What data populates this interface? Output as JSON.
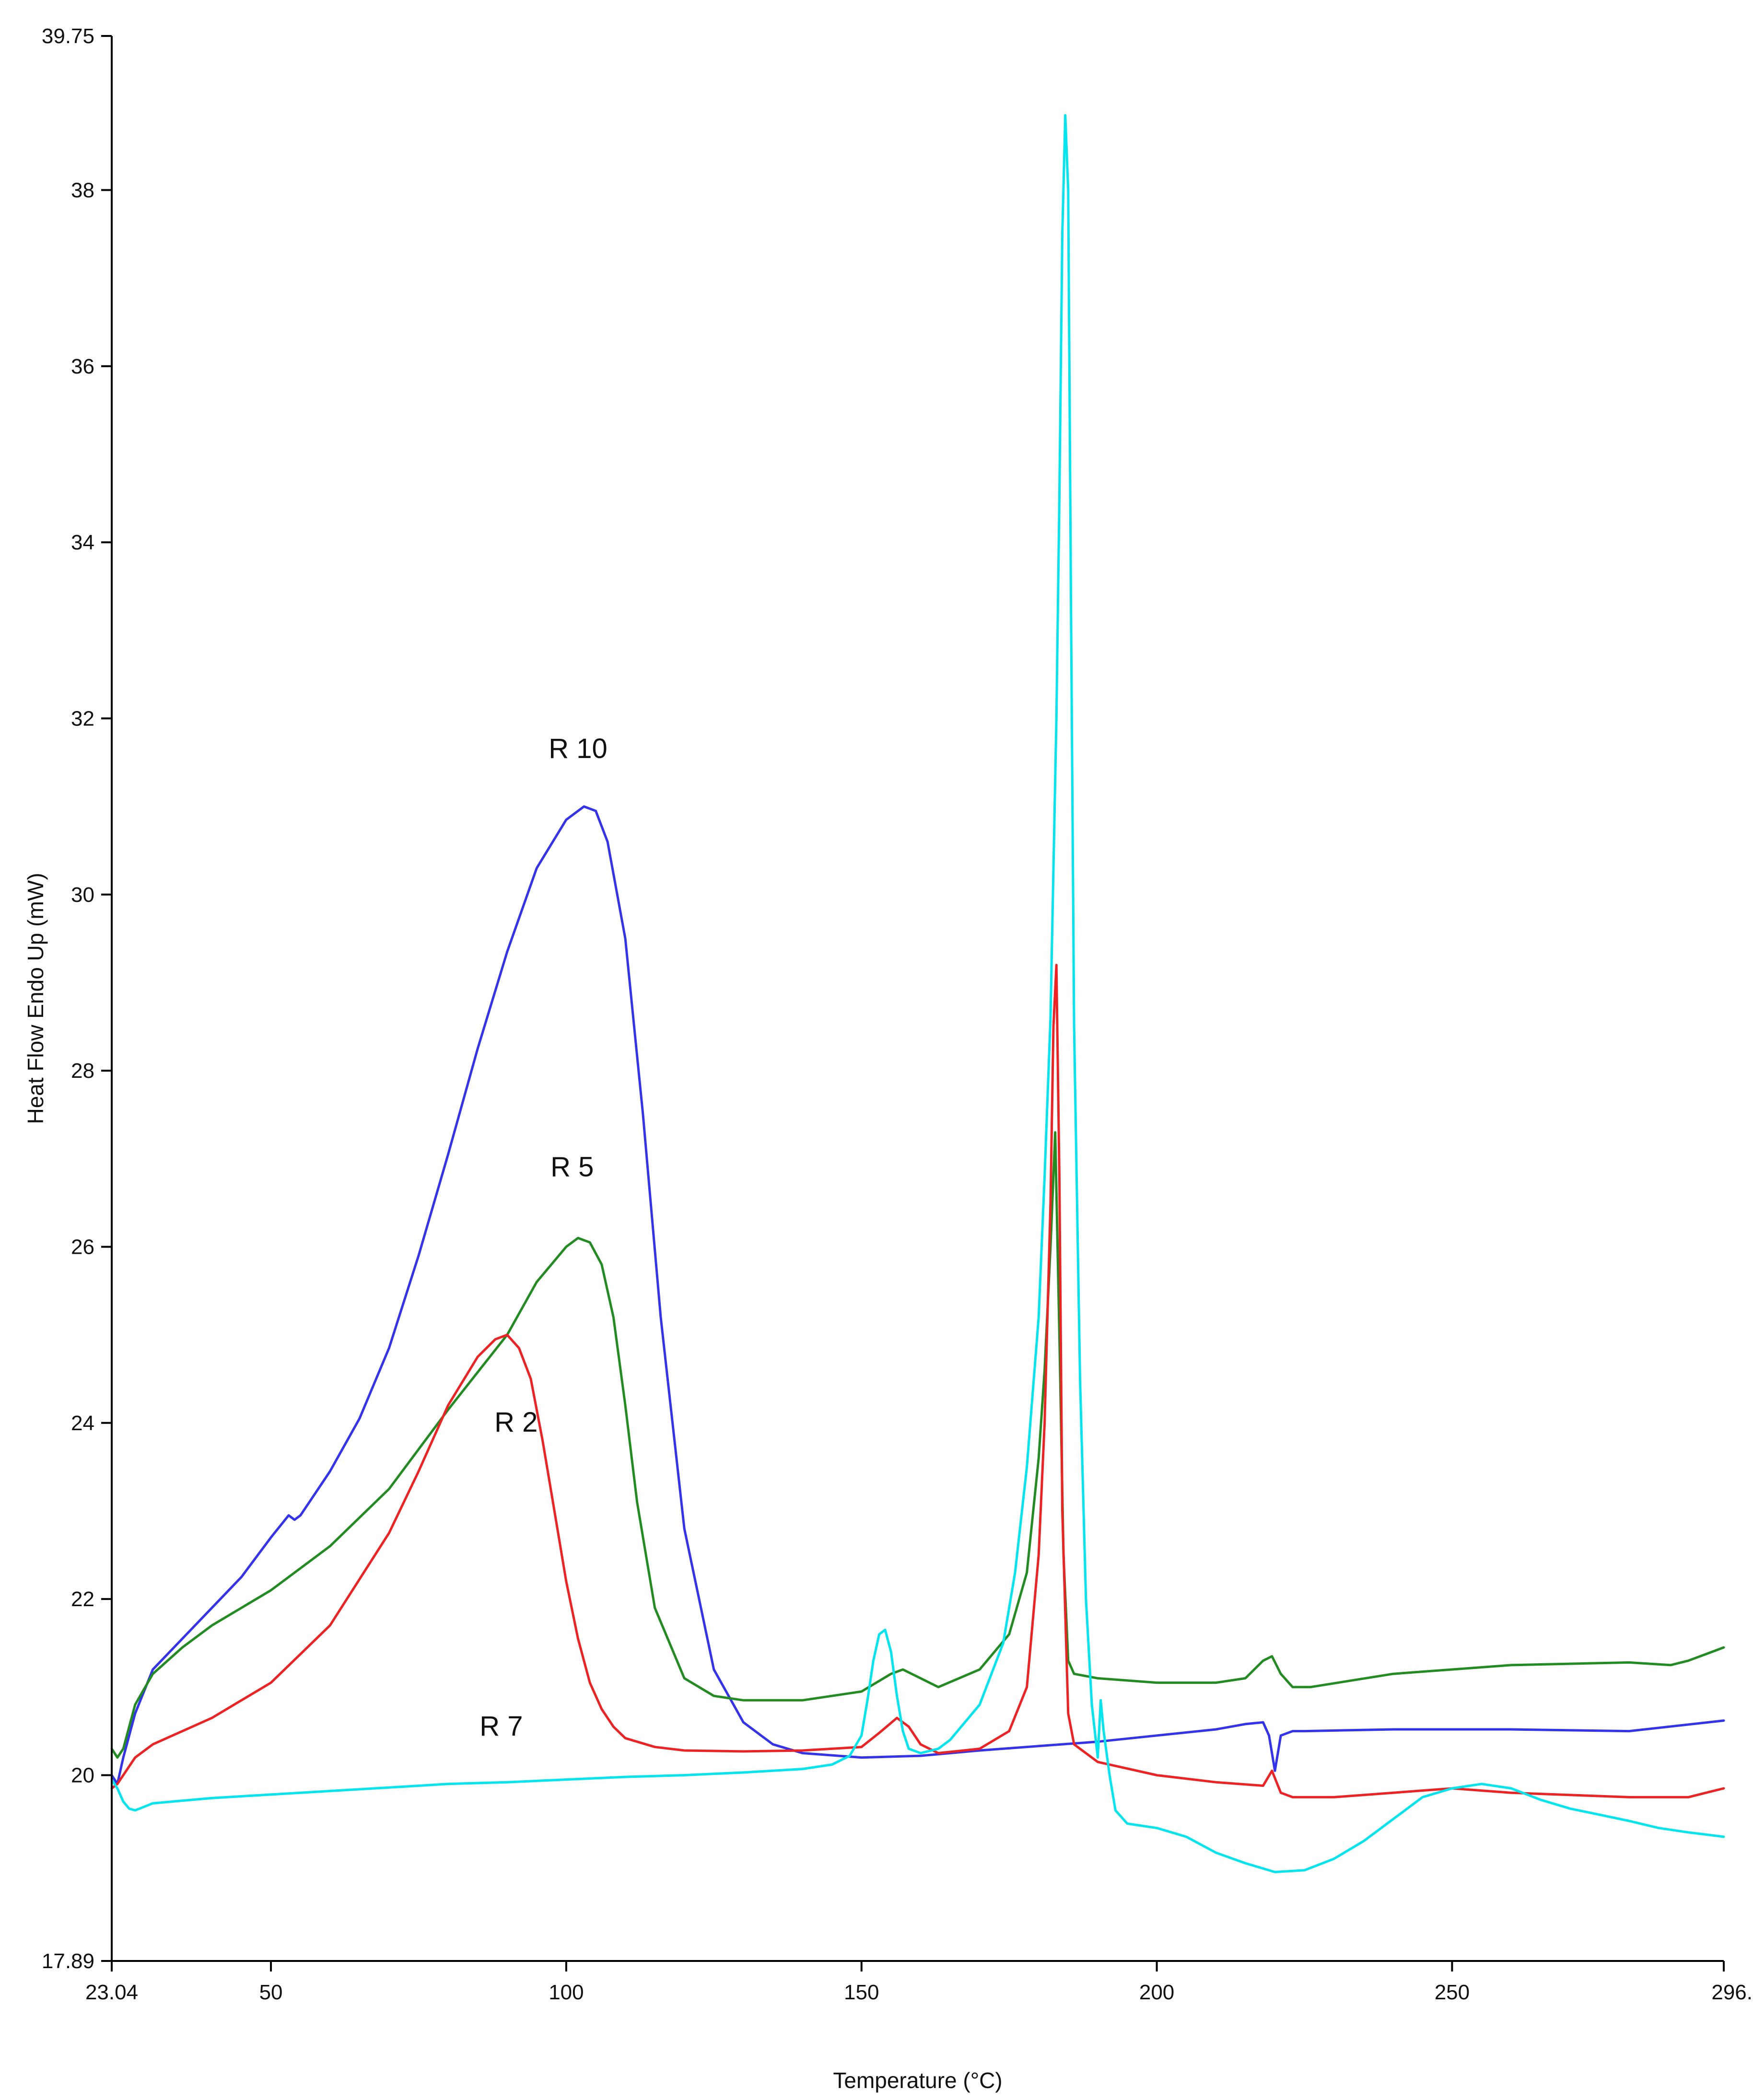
{
  "chart_data": {
    "type": "line",
    "title": "",
    "xlabel": "Temperature (°C)",
    "ylabel": "Heat Flow Endo Up (mW)",
    "xlim": [
      23.04,
      296
    ],
    "ylim": [
      17.89,
      39.75
    ],
    "grid": false,
    "legend": "none",
    "x_ticks": [
      {
        "value": 23.04,
        "label": "23.04"
      },
      {
        "value": 50,
        "label": "50"
      },
      {
        "value": 100,
        "label": "100"
      },
      {
        "value": 150,
        "label": "150"
      },
      {
        "value": 200,
        "label": "200"
      },
      {
        "value": 250,
        "label": "250"
      },
      {
        "value": 296,
        "label": "296."
      }
    ],
    "y_ticks": [
      {
        "value": 17.89,
        "label": "17.89"
      },
      {
        "value": 20,
        "label": "20"
      },
      {
        "value": 22,
        "label": "22"
      },
      {
        "value": 24,
        "label": "24"
      },
      {
        "value": 26,
        "label": "26"
      },
      {
        "value": 28,
        "label": "28"
      },
      {
        "value": 30,
        "label": "30"
      },
      {
        "value": 32,
        "label": "32"
      },
      {
        "value": 34,
        "label": "34"
      },
      {
        "value": 36,
        "label": "36"
      },
      {
        "value": 38,
        "label": "38"
      },
      {
        "value": 39.75,
        "label": "39.75"
      }
    ],
    "annotations": [
      {
        "text": "R 10",
        "x": 102,
        "y": 31.55
      },
      {
        "text": "R 5",
        "x": 101,
        "y": 26.8
      },
      {
        "text": "R 2",
        "x": 91.5,
        "y": 23.9
      },
      {
        "text": "R 7",
        "x": 89,
        "y": 20.45
      }
    ],
    "series": [
      {
        "color": "#3333ee",
        "x": [
          23.04,
          24,
          25,
          27,
          30,
          35,
          40,
          45,
          50,
          53,
          54,
          55,
          57,
          60,
          65,
          70,
          75,
          80,
          85,
          90,
          95,
          100,
          103,
          105,
          107,
          110,
          113,
          116,
          120,
          125,
          130,
          135,
          140,
          150,
          160,
          170,
          180,
          190,
          200,
          210,
          215,
          218,
          219,
          220,
          221,
          223,
          225,
          240,
          260,
          280,
          296
        ],
        "y": [
          20.0,
          19.9,
          20.2,
          20.7,
          21.2,
          21.55,
          21.9,
          22.25,
          22.7,
          22.95,
          22.9,
          22.95,
          23.15,
          23.45,
          24.05,
          24.85,
          25.9,
          27.05,
          28.25,
          29.35,
          30.3,
          30.85,
          31.0,
          30.95,
          30.6,
          29.5,
          27.5,
          25.2,
          22.8,
          21.2,
          20.6,
          20.35,
          20.25,
          20.2,
          20.22,
          20.28,
          20.33,
          20.38,
          20.45,
          20.52,
          20.58,
          20.6,
          20.45,
          20.05,
          20.45,
          20.5,
          20.5,
          20.52,
          20.52,
          20.5,
          20.62
        ]
      },
      {
        "color": "#228b22",
        "x": [
          23.04,
          24,
          25,
          27,
          30,
          35,
          40,
          50,
          60,
          70,
          80,
          90,
          95,
          100,
          102,
          104,
          106,
          108,
          110,
          112,
          115,
          120,
          125,
          130,
          140,
          150,
          155,
          157,
          160,
          163,
          170,
          175,
          178,
          180,
          181,
          182,
          182.8,
          183.5,
          184.2,
          185,
          186,
          190,
          200,
          210,
          215,
          218,
          219.5,
          221,
          223,
          226,
          240,
          260,
          280,
          287,
          290,
          296
        ],
        "y": [
          20.3,
          20.2,
          20.3,
          20.8,
          21.15,
          21.45,
          21.7,
          22.1,
          22.6,
          23.25,
          24.15,
          25.0,
          25.6,
          26.0,
          26.1,
          26.05,
          25.8,
          25.2,
          24.2,
          23.1,
          21.9,
          21.1,
          20.9,
          20.85,
          20.85,
          20.95,
          21.15,
          21.2,
          21.1,
          21.0,
          21.2,
          21.6,
          22.3,
          23.6,
          24.6,
          26.0,
          27.3,
          25.0,
          22.5,
          21.3,
          21.15,
          21.1,
          21.05,
          21.05,
          21.1,
          21.3,
          21.35,
          21.15,
          21.0,
          21.0,
          21.15,
          21.25,
          21.28,
          21.25,
          21.3,
          21.45
        ]
      },
      {
        "color": "#ee2222",
        "x": [
          23.04,
          24,
          25,
          27,
          30,
          40,
          50,
          60,
          70,
          75,
          80,
          85,
          88,
          90,
          92,
          94,
          96,
          98,
          100,
          102,
          104,
          106,
          108,
          110,
          115,
          120,
          130,
          140,
          150,
          153,
          156,
          158,
          160,
          163,
          170,
          175,
          178,
          180,
          181,
          182,
          182.5,
          183,
          183.5,
          184,
          185,
          186,
          190,
          200,
          210,
          218,
          219.5,
          221,
          223,
          230,
          240,
          250,
          260,
          280,
          290,
          296
        ],
        "y": [
          19.85,
          19.9,
          20.0,
          20.2,
          20.35,
          20.65,
          21.05,
          21.7,
          22.75,
          23.45,
          24.2,
          24.75,
          24.95,
          25.0,
          24.85,
          24.5,
          23.8,
          23.0,
          22.2,
          21.55,
          21.05,
          20.75,
          20.55,
          20.42,
          20.32,
          20.28,
          20.27,
          20.28,
          20.32,
          20.48,
          20.65,
          20.55,
          20.35,
          20.25,
          20.3,
          20.5,
          21.0,
          22.5,
          24.0,
          26.5,
          28.5,
          29.2,
          26.8,
          23.0,
          20.7,
          20.35,
          20.15,
          20.0,
          19.92,
          19.88,
          20.05,
          19.8,
          19.75,
          19.75,
          19.8,
          19.85,
          19.8,
          19.75,
          19.75,
          19.85
        ]
      },
      {
        "color": "#00e5ee",
        "x": [
          23.04,
          24,
          25,
          26,
          27,
          30,
          40,
          50,
          60,
          70,
          80,
          90,
          100,
          110,
          120,
          130,
          140,
          145,
          148,
          150,
          151,
          152,
          153,
          154,
          155,
          156,
          157,
          158,
          160,
          163,
          165,
          170,
          174,
          176,
          178,
          180,
          181,
          182,
          183,
          183.5,
          184,
          184.5,
          185,
          185.5,
          186,
          187,
          188,
          189,
          190,
          190.5,
          191,
          192,
          193,
          195,
          200,
          205,
          210,
          215,
          220,
          225,
          230,
          235,
          240,
          245,
          250,
          255,
          260,
          265,
          270,
          275,
          280,
          285,
          290,
          296
        ],
        "y": [
          19.95,
          19.85,
          19.7,
          19.62,
          19.6,
          19.68,
          19.74,
          19.78,
          19.82,
          19.86,
          19.9,
          19.92,
          19.95,
          19.98,
          20.0,
          20.03,
          20.07,
          20.12,
          20.22,
          20.45,
          20.85,
          21.3,
          21.6,
          21.65,
          21.4,
          20.9,
          20.5,
          20.3,
          20.25,
          20.3,
          20.4,
          20.8,
          21.5,
          22.3,
          23.5,
          25.2,
          26.8,
          28.6,
          32.0,
          34.5,
          37.5,
          38.85,
          38.0,
          33.0,
          28.5,
          24.5,
          22.0,
          20.8,
          20.2,
          20.85,
          20.5,
          20.0,
          19.6,
          19.45,
          19.4,
          19.3,
          19.12,
          19.0,
          18.9,
          18.92,
          19.05,
          19.25,
          19.5,
          19.75,
          19.85,
          19.9,
          19.85,
          19.72,
          19.62,
          19.55,
          19.48,
          19.4,
          19.35,
          19.3
        ]
      }
    ]
  }
}
